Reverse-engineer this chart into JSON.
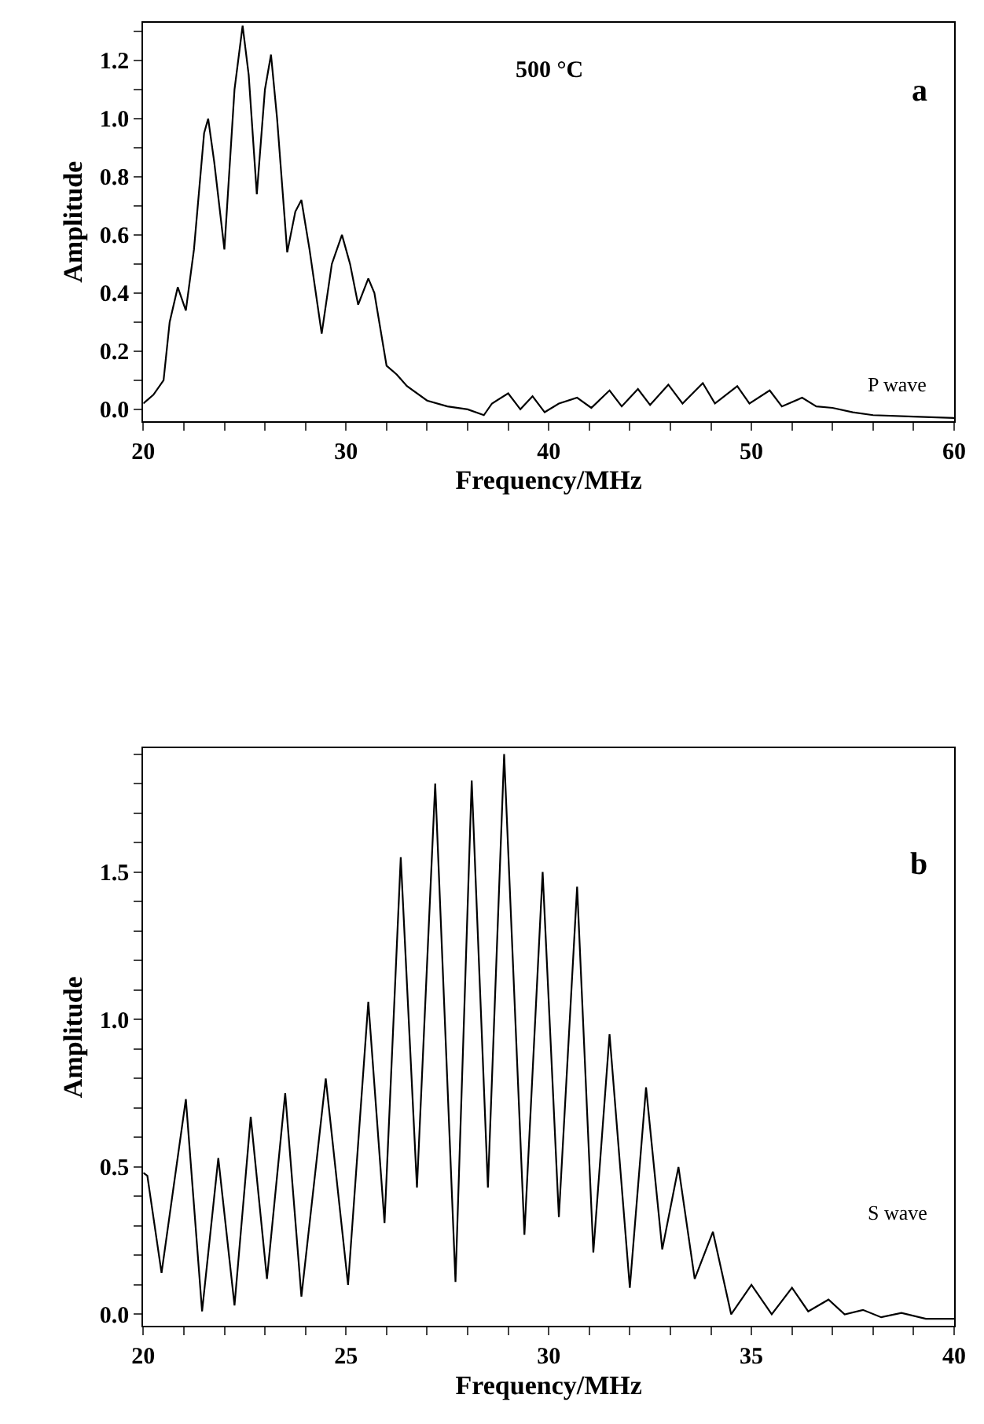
{
  "chart_data": [
    {
      "type": "line",
      "xlabel": "Frequency/MHz",
      "ylabel": "Amplitude",
      "annotations": [
        "500 °C",
        "a",
        "P wave"
      ],
      "xlim": [
        20,
        60
      ],
      "ylim": [
        -0.04,
        1.33
      ],
      "marker": "none",
      "line_style": "solid",
      "xticks": [
        20,
        {
          "value": 22,
          "label": null
        },
        {
          "value": 24,
          "label": null
        },
        {
          "value": 26,
          "label": null
        },
        {
          "value": 28,
          "label": null
        },
        30,
        {
          "value": 32,
          "label": null
        },
        {
          "value": 34,
          "label": null
        },
        {
          "value": 36,
          "label": null
        },
        {
          "value": 38,
          "label": null
        },
        40,
        {
          "value": 42,
          "label": null
        },
        {
          "value": 44,
          "label": null
        },
        {
          "value": 46,
          "label": null
        },
        {
          "value": 48,
          "label": null
        },
        50,
        {
          "value": 52,
          "label": null
        },
        {
          "value": 54,
          "label": null
        },
        {
          "value": 56,
          "label": null
        },
        {
          "value": 58,
          "label": null
        },
        60
      ],
      "yticks": [
        {
          "value": 0,
          "label": "0.0"
        },
        {
          "value": 0.1,
          "label": null
        },
        {
          "value": 0.2,
          "label": "0.2"
        },
        {
          "value": 0.3,
          "label": null
        },
        {
          "value": 0.4,
          "label": "0.4"
        },
        {
          "value": 0.5,
          "label": null
        },
        {
          "value": 0.6,
          "label": "0.6"
        },
        {
          "value": 0.7,
          "label": null
        },
        {
          "value": 0.8,
          "label": "0.8"
        },
        {
          "value": 0.9,
          "label": null
        },
        {
          "value": 1.0,
          "label": "1.0"
        },
        {
          "value": 1.1,
          "label": null
        },
        {
          "value": 1.2,
          "label": "1.2"
        },
        {
          "value": 1.3,
          "label": null
        }
      ],
      "x": [
        20.0,
        20.5,
        21.0,
        21.3,
        21.7,
        22.1,
        22.5,
        23.0,
        23.2,
        23.5,
        24.0,
        24.5,
        24.9,
        25.2,
        25.6,
        26.0,
        26.3,
        26.6,
        27.1,
        27.5,
        27.8,
        28.2,
        28.8,
        29.3,
        29.8,
        30.2,
        30.6,
        31.1,
        31.4,
        32.0,
        32.5,
        33.0,
        34.0,
        35.0,
        36.0,
        36.8,
        37.2,
        38.0,
        38.6,
        39.2,
        39.8,
        40.5,
        41.4,
        42.1,
        43.0,
        43.6,
        44.4,
        45.0,
        45.9,
        46.6,
        47.6,
        48.2,
        49.3,
        49.9,
        50.9,
        51.5,
        52.5,
        53.2,
        54.0,
        55.0,
        56.0,
        58.0,
        60.0
      ],
      "series": [
        {
          "color": "#000000",
          "values": [
            0.02,
            0.05,
            0.1,
            0.3,
            0.42,
            0.34,
            0.55,
            0.95,
            1.0,
            0.85,
            0.55,
            1.1,
            1.32,
            1.15,
            0.74,
            1.1,
            1.22,
            1.0,
            0.54,
            0.68,
            0.72,
            0.55,
            0.26,
            0.5,
            0.6,
            0.5,
            0.36,
            0.45,
            0.4,
            0.15,
            0.12,
            0.08,
            0.03,
            0.01,
            0.0,
            -0.02,
            0.02,
            0.055,
            0.0,
            0.045,
            -0.01,
            0.02,
            0.04,
            0.005,
            0.065,
            0.01,
            0.07,
            0.015,
            0.085,
            0.02,
            0.09,
            0.02,
            0.08,
            0.02,
            0.065,
            0.01,
            0.04,
            0.01,
            0.005,
            -0.01,
            -0.02,
            -0.025,
            -0.03
          ]
        }
      ]
    },
    {
      "type": "line",
      "xlabel": "Frequency/MHz",
      "ylabel": "Amplitude",
      "annotations": [
        "b",
        "S wave"
      ],
      "xlim": [
        20,
        40
      ],
      "ylim": [
        -0.04,
        1.92
      ],
      "marker": "none",
      "line_style": "solid",
      "xticks": [
        20,
        {
          "value": 21,
          "label": null
        },
        {
          "value": 22,
          "label": null
        },
        {
          "value": 23,
          "label": null
        },
        {
          "value": 24,
          "label": null
        },
        25,
        {
          "value": 26,
          "label": null
        },
        {
          "value": 27,
          "label": null
        },
        {
          "value": 28,
          "label": null
        },
        {
          "value": 29,
          "label": null
        },
        30,
        {
          "value": 31,
          "label": null
        },
        {
          "value": 32,
          "label": null
        },
        {
          "value": 33,
          "label": null
        },
        {
          "value": 34,
          "label": null
        },
        35,
        {
          "value": 36,
          "label": null
        },
        {
          "value": 37,
          "label": null
        },
        {
          "value": 38,
          "label": null
        },
        {
          "value": 39,
          "label": null
        },
        40
      ],
      "yticks": [
        {
          "value": 0,
          "label": "0.0"
        },
        {
          "value": 0.1,
          "label": null
        },
        {
          "value": 0.2,
          "label": null
        },
        {
          "value": 0.3,
          "label": null
        },
        {
          "value": 0.4,
          "label": null
        },
        {
          "value": 0.5,
          "label": "0.5"
        },
        {
          "value": 0.6,
          "label": null
        },
        {
          "value": 0.7,
          "label": null
        },
        {
          "value": 0.8,
          "label": null
        },
        {
          "value": 0.9,
          "label": null
        },
        {
          "value": 1.0,
          "label": "1.0"
        },
        {
          "value": 1.1,
          "label": null
        },
        {
          "value": 1.2,
          "label": null
        },
        {
          "value": 1.3,
          "label": null
        },
        {
          "value": 1.4,
          "label": null
        },
        {
          "value": 1.5,
          "label": "1.5"
        },
        {
          "value": 1.6,
          "label": null
        },
        {
          "value": 1.7,
          "label": null
        },
        {
          "value": 1.8,
          "label": null
        },
        {
          "value": 1.9,
          "label": null
        }
      ],
      "x": [
        20.0,
        20.1,
        20.45,
        21.05,
        21.45,
        21.85,
        22.25,
        22.65,
        23.05,
        23.5,
        23.9,
        24.5,
        25.05,
        25.55,
        25.95,
        26.35,
        26.75,
        27.2,
        27.7,
        28.1,
        28.5,
        28.9,
        29.4,
        29.85,
        30.25,
        30.7,
        31.1,
        31.5,
        32.0,
        32.4,
        32.8,
        33.2,
        33.6,
        34.05,
        34.5,
        35.0,
        35.5,
        36.0,
        36.4,
        36.9,
        37.3,
        37.75,
        38.2,
        38.7,
        39.3,
        40.0
      ],
      "series": [
        {
          "color": "#000000",
          "values": [
            0.48,
            0.47,
            0.14,
            0.73,
            0.01,
            0.53,
            0.03,
            0.67,
            0.12,
            0.75,
            0.06,
            0.8,
            0.1,
            1.06,
            0.31,
            1.55,
            0.43,
            1.8,
            0.11,
            1.81,
            0.43,
            1.9,
            0.27,
            1.5,
            0.33,
            1.45,
            0.21,
            0.95,
            0.09,
            0.77,
            0.22,
            0.5,
            0.12,
            0.28,
            0.0,
            0.1,
            0.0,
            0.09,
            0.01,
            0.05,
            0.0,
            0.015,
            -0.01,
            0.005,
            -0.015,
            -0.015
          ]
        }
      ]
    }
  ]
}
